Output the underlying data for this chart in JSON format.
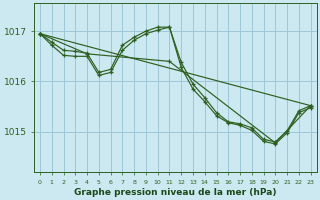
{
  "background_color": "#cce8f0",
  "plot_bg_color": "#cce8f0",
  "grid_color": "#9dc8d8",
  "line_color": "#2d6020",
  "marker_color": "#2d6020",
  "title": "Graphe pression niveau de la mer (hPa)",
  "xlabel_color": "#1a4a1a",
  "yticks": [
    1015,
    1016,
    1017
  ],
  "ylim": [
    1014.2,
    1017.55
  ],
  "xlim": [
    -0.5,
    23.5
  ],
  "series1_x": [
    0,
    1,
    2,
    3,
    4,
    5,
    6,
    7,
    8,
    9,
    10,
    11,
    12,
    13,
    14,
    15,
    16,
    17,
    18,
    19,
    20,
    21,
    22,
    23
  ],
  "series1_y": [
    1016.95,
    1016.78,
    1016.62,
    1016.6,
    1016.56,
    1016.18,
    1016.24,
    1016.72,
    1016.88,
    1017.0,
    1017.08,
    1017.08,
    1016.38,
    1015.95,
    1015.68,
    1015.38,
    1015.2,
    1015.16,
    1015.08,
    1014.85,
    1014.8,
    1015.02,
    1015.42,
    1015.52
  ],
  "series2_x": [
    0,
    1,
    2,
    3,
    4,
    5,
    6,
    7,
    8,
    9,
    10,
    11,
    12,
    13,
    14,
    15,
    16,
    17,
    18,
    19,
    20,
    21,
    22,
    23
  ],
  "series2_y": [
    1016.95,
    1016.72,
    1016.52,
    1016.5,
    1016.5,
    1016.12,
    1016.18,
    1016.62,
    1016.82,
    1016.95,
    1017.02,
    1017.08,
    1016.28,
    1015.85,
    1015.6,
    1015.32,
    1015.18,
    1015.13,
    1015.03,
    1014.81,
    1014.76,
    1014.98,
    1015.38,
    1015.48
  ],
  "series3_x": [
    0,
    4,
    11,
    20,
    23
  ],
  "series3_y": [
    1016.95,
    1016.55,
    1016.4,
    1014.78,
    1015.52
  ],
  "series4_x": [
    0,
    23
  ],
  "series4_y": [
    1016.95,
    1015.52
  ]
}
